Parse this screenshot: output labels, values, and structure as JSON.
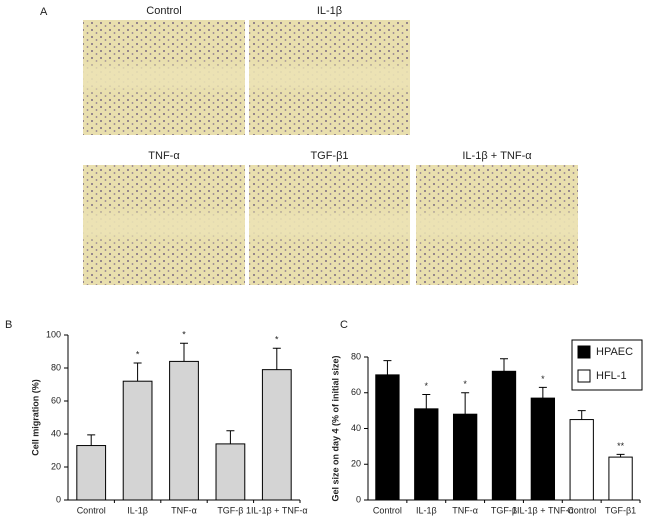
{
  "panel_a": {
    "label": "A",
    "images": [
      "Control",
      "IL-1β",
      "TNF-α",
      "TGF-β1",
      "IL-1β + TNF-α"
    ]
  },
  "chart_data": [
    {
      "type": "bar",
      "label": "B",
      "ylabel": "Cell migration (%)",
      "categories": [
        "Control",
        "IL-1β",
        "TNF-α",
        "TGF-β",
        "1IL-1β + TNF-α"
      ],
      "series": [
        {
          "color": "#d4d4d4",
          "values": [
            33,
            72,
            84,
            34,
            79
          ],
          "errors": [
            6.5,
            11,
            11,
            8,
            13
          ]
        }
      ],
      "significance": [
        null,
        "*",
        "*",
        null,
        "*"
      ],
      "ylim": [
        0,
        100
      ],
      "yticks": [
        0,
        20,
        40,
        60,
        80,
        100
      ]
    },
    {
      "type": "bar",
      "label": "C",
      "ylabel": "Gel size on day 4 (% of initial size)",
      "categories": [
        "Control",
        "IL-1β",
        "TNF-α",
        "TGF-β",
        "1IL-1β + TNF-α",
        "Control",
        "TGF-β1"
      ],
      "series": [
        {
          "name": "HPAEC",
          "color": "#000000",
          "values": [
            70,
            51,
            48,
            72,
            57,
            null,
            null
          ],
          "errors": [
            8,
            8,
            12,
            7,
            6,
            null,
            null
          ]
        },
        {
          "name": "HFL-1",
          "color": "#ffffff",
          "values": [
            null,
            null,
            null,
            null,
            null,
            45,
            24
          ],
          "errors": [
            null,
            null,
            null,
            null,
            null,
            5,
            1.5
          ]
        }
      ],
      "significance": [
        null,
        "*",
        "*",
        null,
        "*",
        null,
        "**"
      ],
      "ylim": [
        0,
        80
      ],
      "yticks": [
        0,
        20,
        40,
        60,
        80
      ]
    }
  ]
}
